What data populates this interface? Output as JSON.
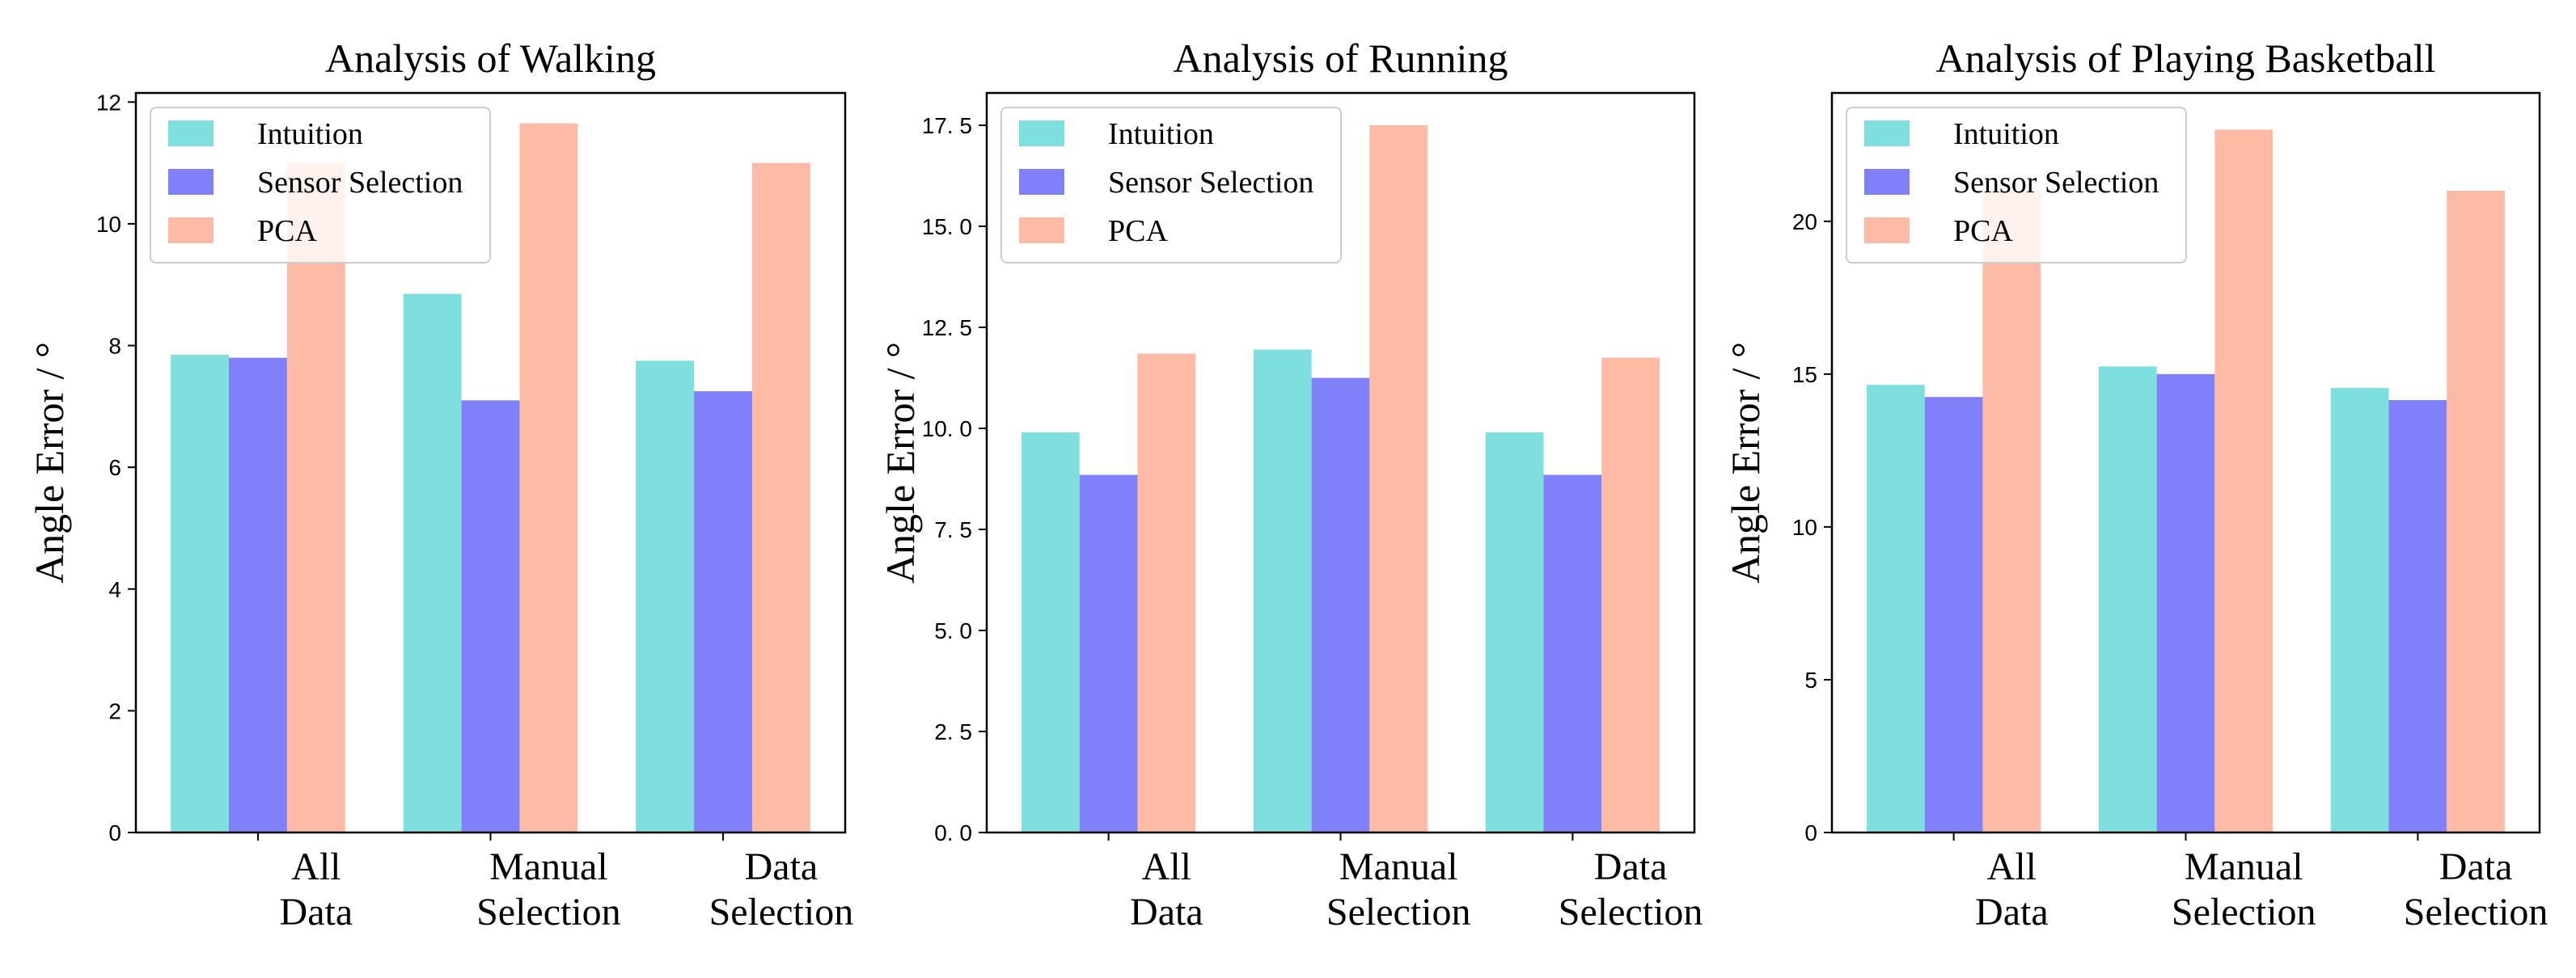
{
  "chart_data": [
    {
      "type": "bar",
      "title": "Analysis of Walking",
      "xlabel": "",
      "ylabel": "Angle Error / °",
      "categories": [
        [
          "All",
          "Data"
        ],
        [
          "Manual",
          "Selection"
        ],
        [
          "Data",
          "Selection"
        ]
      ],
      "ylim": [
        0,
        12.15
      ],
      "yticks": [
        0,
        2,
        4,
        6,
        8,
        10,
        12
      ],
      "ytick_labels": [
        "0",
        "2",
        "4",
        "6",
        "8",
        "10",
        "12"
      ],
      "series": [
        {
          "name": "Intuition",
          "color": "#7fdfdf",
          "values": [
            7.85,
            8.85,
            7.75
          ]
        },
        {
          "name": "Sensor Selection",
          "color": "#8080fb",
          "values": [
            7.8,
            7.1,
            7.25
          ]
        },
        {
          "name": "PCA",
          "color": "#fdbba6",
          "values": [
            11.0,
            11.65,
            11.0
          ]
        }
      ],
      "legend_position": "top-left"
    },
    {
      "type": "bar",
      "title": "Analysis of Running",
      "xlabel": "",
      "ylabel": "Angle Error / °",
      "categories": [
        [
          "All",
          "Data"
        ],
        [
          "Manual",
          "Selection"
        ],
        [
          "Data",
          "Selection"
        ]
      ],
      "ylim": [
        0,
        18.3
      ],
      "yticks": [
        0,
        2.5,
        5,
        7.5,
        10,
        12.5,
        15,
        17.5
      ],
      "ytick_labels": [
        "0. 0",
        "2. 5",
        "5. 0",
        "7. 5",
        "10. 0",
        "12. 5",
        "15. 0",
        "17. 5"
      ],
      "series": [
        {
          "name": "Intuition",
          "color": "#7fdfdf",
          "values": [
            9.9,
            11.95,
            9.9
          ]
        },
        {
          "name": "Sensor Selection",
          "color": "#8080fb",
          "values": [
            8.85,
            11.25,
            8.85
          ]
        },
        {
          "name": "PCA",
          "color": "#fdbba6",
          "values": [
            11.85,
            17.5,
            11.75
          ]
        }
      ],
      "legend_position": "top-left"
    },
    {
      "type": "bar",
      "title": "Analysis of Playing Basketball",
      "xlabel": "",
      "ylabel": "Angle Error / °",
      "categories": [
        [
          "All",
          "Data"
        ],
        [
          "Manual",
          "Selection"
        ],
        [
          "Data",
          "Selection"
        ]
      ],
      "ylim": [
        0,
        24.2
      ],
      "yticks": [
        0,
        5,
        10,
        15,
        20
      ],
      "ytick_labels": [
        "0",
        "5",
        "10",
        "15",
        "20"
      ],
      "series": [
        {
          "name": "Intuition",
          "color": "#7fdfdf",
          "values": [
            14.65,
            15.25,
            14.55
          ]
        },
        {
          "name": "Sensor Selection",
          "color": "#8080fb",
          "values": [
            14.25,
            15.0,
            14.15
          ]
        },
        {
          "name": "PCA",
          "color": "#fdbba6",
          "values": [
            21.0,
            23.0,
            21.0
          ]
        }
      ],
      "legend_position": "top-left"
    }
  ]
}
